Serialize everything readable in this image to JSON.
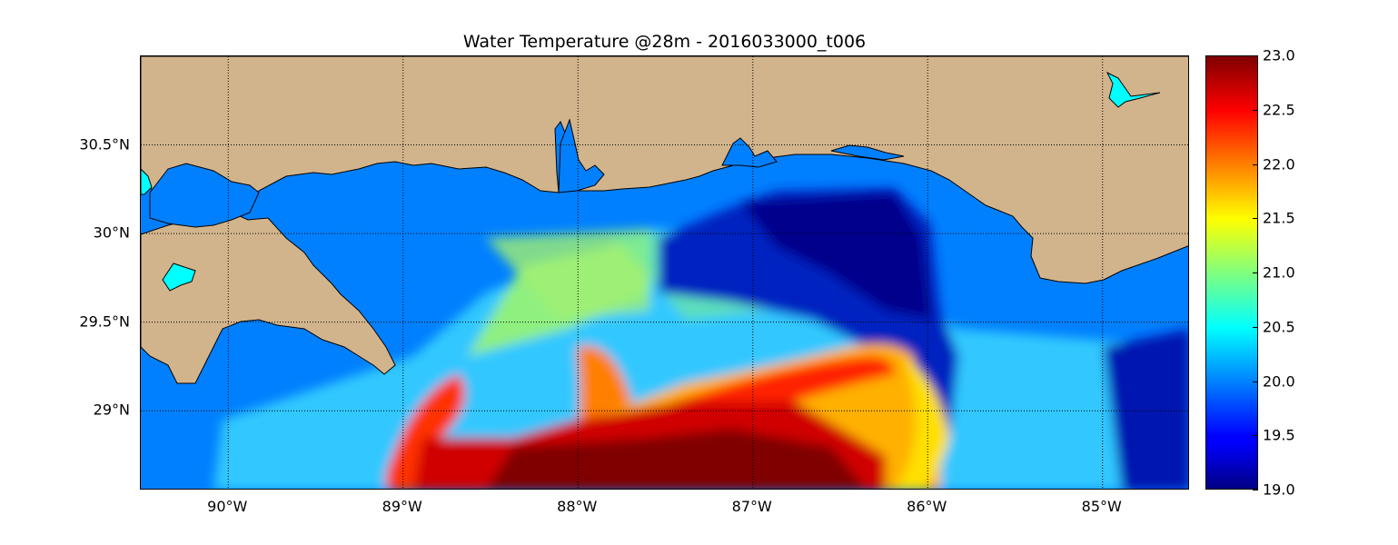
{
  "title": "Water Temperature @28m - 2016033000_t006",
  "map": {
    "lon_range": [
      -90.5,
      -84.5
    ],
    "lat_range": [
      28.55,
      31.0
    ],
    "lon_ticks": [
      {
        "value": -90,
        "label": "90°W"
      },
      {
        "value": -89,
        "label": "89°W"
      },
      {
        "value": -88,
        "label": "88°W"
      },
      {
        "value": -87,
        "label": "87°W"
      },
      {
        "value": -86,
        "label": "86°W"
      },
      {
        "value": -85,
        "label": "85°W"
      }
    ],
    "lat_ticks": [
      {
        "value": 30.5,
        "label": "30.5°N"
      },
      {
        "value": 30.0,
        "label": "30°N"
      },
      {
        "value": 29.5,
        "label": "29.5°N"
      },
      {
        "value": 29.0,
        "label": "29°N"
      }
    ],
    "gridlines": "dotted",
    "land_color": "#d2b48c",
    "lake_color": "#00ffff",
    "ocean_nodata_color": "#0080ff"
  },
  "colorbar": {
    "colormap": "jet",
    "min": 19.0,
    "max": 23.0,
    "ticks": [
      "23.0",
      "22.5",
      "22.0",
      "21.5",
      "21.0",
      "20.5",
      "20.0",
      "19.5",
      "19.0"
    ]
  }
}
